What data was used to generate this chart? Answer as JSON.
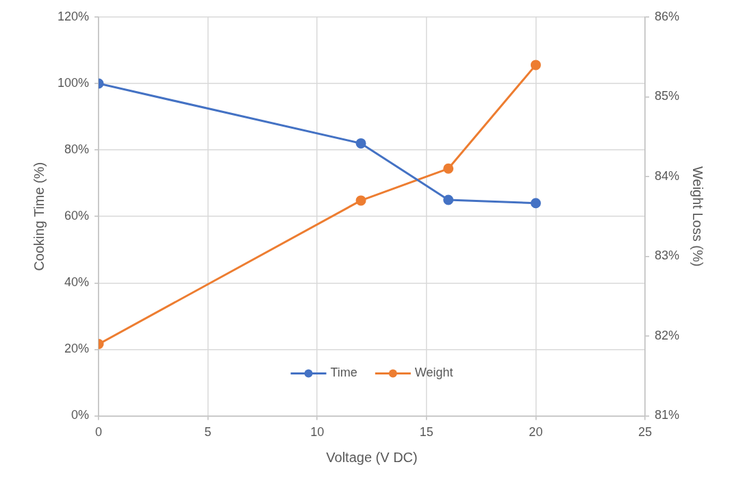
{
  "chart_data": {
    "type": "line",
    "xlabel": "Voltage (V DC)",
    "ylabel": "Cooking Time (%)",
    "y2label": "Weight Loss (%)",
    "series": [
      {
        "name": "Time",
        "color": "#4472c4",
        "x": [
          0,
          12,
          16,
          20
        ],
        "values": [
          100,
          82,
          65,
          64
        ]
      },
      {
        "name": "Weight",
        "color": "#ed7d31",
        "x": [
          0,
          12,
          16,
          20
        ],
        "values": [
          81.9,
          83.7,
          84.1,
          85.4
        ],
        "axis": "y2"
      }
    ],
    "xlim": [
      0,
      25
    ],
    "xticks": [
      0,
      5,
      10,
      15,
      20,
      25
    ],
    "ylim": [
      0,
      120
    ],
    "yticks": [
      {
        "value": 0,
        "label": "0%"
      },
      {
        "value": 20,
        "label": "20%"
      },
      {
        "value": 40,
        "label": "40%"
      },
      {
        "value": 60,
        "label": "60%"
      },
      {
        "value": 80,
        "label": "80%"
      },
      {
        "value": 100,
        "label": "100%"
      },
      {
        "value": 120,
        "label": "120%"
      }
    ],
    "y2lim": [
      81,
      86
    ],
    "y2ticks": [
      {
        "value": 81,
        "label": "81%"
      },
      {
        "value": 82,
        "label": "82%"
      },
      {
        "value": 83,
        "label": "83%"
      },
      {
        "value": 84,
        "label": "84%"
      },
      {
        "value": 85,
        "label": "85%"
      },
      {
        "value": 86,
        "label": "86%"
      }
    ],
    "grid": true,
    "legend": "bottom",
    "marker": "circle",
    "line_style": "solid"
  }
}
